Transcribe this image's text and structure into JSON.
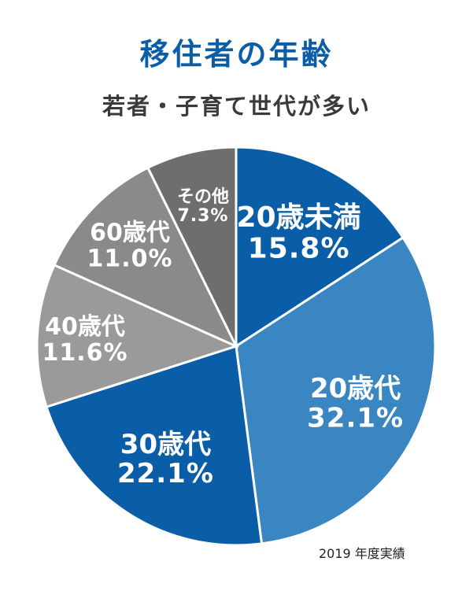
{
  "title": "移住者の年齢",
  "subtitle": "若者・子育て世代が多い",
  "note": "2019 年度実績",
  "chart_data": {
    "type": "pie",
    "start": "12 o'clock",
    "direction": "clockwise",
    "slices": [
      {
        "label": "20歳未満",
        "value": 15.8,
        "display": "15.8%",
        "color": "#0a5ea8"
      },
      {
        "label": "20歳代",
        "value": 32.1,
        "display": "32.1%",
        "color": "#3a86c2"
      },
      {
        "label": "30歳代",
        "value": 22.1,
        "display": "22.1%",
        "color": "#0a5ea8"
      },
      {
        "label": "40歳代",
        "value": 11.6,
        "display": "11.6%",
        "color": "#9a9a9a"
      },
      {
        "label": "60歳代",
        "value": 11.0,
        "display": "11.0%",
        "color": "#8a8a8a"
      },
      {
        "label": "その他",
        "value": 7.3,
        "display": "7.3%",
        "color": "#6e6e6e"
      }
    ]
  }
}
